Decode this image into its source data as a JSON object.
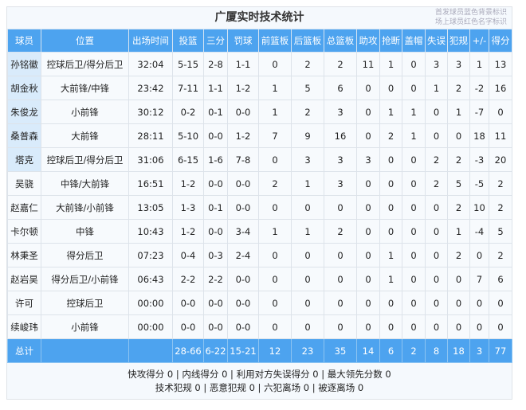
{
  "title": "广厦实时技术统计",
  "legend": [
    "首发球员蓝色背景标识",
    "场上球员红色名字标识"
  ],
  "colors": {
    "header": "#4da3ef",
    "starter_bg": "#d9ebfb"
  },
  "columns": [
    "球员",
    "位置",
    "出场时间",
    "投篮",
    "三分",
    "罚球",
    "前篮板",
    "后篮板",
    "总篮板",
    "助攻",
    "抢断",
    "盖帽",
    "失误",
    "犯规",
    "+/-",
    "得分"
  ],
  "rows": [
    {
      "starter": true,
      "cells": [
        "孙铭徽",
        "控球后卫/得分后卫",
        "32:04",
        "5-15",
        "2-8",
        "1-1",
        "0",
        "2",
        "2",
        "11",
        "1",
        "0",
        "3",
        "3",
        "1",
        "13"
      ]
    },
    {
      "starter": true,
      "cells": [
        "胡金秋",
        "大前锋/中锋",
        "23:42",
        "7-11",
        "1-1",
        "1-2",
        "1",
        "5",
        "6",
        "0",
        "0",
        "0",
        "1",
        "2",
        "-2",
        "16"
      ]
    },
    {
      "starter": true,
      "cells": [
        "朱俊龙",
        "小前锋",
        "30:12",
        "0-2",
        "0-1",
        "0-0",
        "1",
        "2",
        "3",
        "0",
        "1",
        "1",
        "0",
        "1",
        "-7",
        "0"
      ]
    },
    {
      "starter": true,
      "cells": [
        "桑普森",
        "大前锋",
        "28:11",
        "5-10",
        "0-0",
        "1-2",
        "7",
        "9",
        "16",
        "0",
        "2",
        "1",
        "0",
        "0",
        "18",
        "11"
      ]
    },
    {
      "starter": true,
      "cells": [
        "塔克",
        "控球后卫/得分后卫",
        "31:06",
        "6-15",
        "1-6",
        "7-8",
        "0",
        "3",
        "3",
        "3",
        "0",
        "0",
        "2",
        "2",
        "-3",
        "20"
      ]
    },
    {
      "starter": false,
      "cells": [
        "吴骁",
        "中锋/大前锋",
        "16:51",
        "1-2",
        "0-0",
        "0-0",
        "2",
        "1",
        "3",
        "0",
        "0",
        "0",
        "2",
        "5",
        "-5",
        "2"
      ]
    },
    {
      "starter": false,
      "cells": [
        "赵嘉仁",
        "大前锋/小前锋",
        "13:05",
        "1-3",
        "0-1",
        "0-0",
        "0",
        "0",
        "0",
        "0",
        "0",
        "0",
        "0",
        "2",
        "10",
        "2"
      ]
    },
    {
      "starter": false,
      "cells": [
        "卡尔顿",
        "中锋",
        "10:43",
        "1-2",
        "0-0",
        "3-4",
        "1",
        "1",
        "2",
        "0",
        "0",
        "0",
        "0",
        "1",
        "-4",
        "5"
      ]
    },
    {
      "starter": false,
      "cells": [
        "林秉圣",
        "得分后卫",
        "07:23",
        "0-4",
        "0-3",
        "2-4",
        "0",
        "0",
        "0",
        "0",
        "1",
        "0",
        "0",
        "2",
        "0",
        "2"
      ]
    },
    {
      "starter": false,
      "cells": [
        "赵岩昊",
        "得分后卫/小前锋",
        "06:43",
        "2-2",
        "2-2",
        "0-0",
        "0",
        "0",
        "0",
        "0",
        "1",
        "0",
        "0",
        "0",
        "7",
        "6"
      ]
    },
    {
      "starter": false,
      "cells": [
        "许可",
        "控球后卫",
        "00:00",
        "0-0",
        "0-0",
        "0-0",
        "0",
        "0",
        "0",
        "0",
        "0",
        "0",
        "0",
        "0",
        "0",
        "0"
      ]
    },
    {
      "starter": false,
      "cells": [
        "续峻玮",
        "小前锋",
        "00:00",
        "0-0",
        "0-0",
        "0-0",
        "0",
        "0",
        "0",
        "0",
        "0",
        "0",
        "0",
        "0",
        "0",
        "0"
      ]
    }
  ],
  "total": [
    "总计",
    "",
    "",
    "28-66",
    "6-22",
    "15-21",
    "12",
    "23",
    "35",
    "14",
    "6",
    "2",
    "8",
    "18",
    "3",
    "77"
  ],
  "footer": [
    "快攻得分 0 | 内线得分 0 | 利用对方失误得分 0 | 最大领先分数 0",
    "技术犯规 0 | 恶意犯规 0 | 六犯离场 0 | 被逐离场 0"
  ]
}
